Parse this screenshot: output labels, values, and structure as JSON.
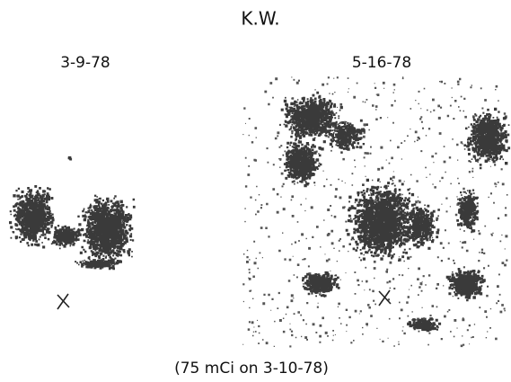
{
  "title": "K.W.",
  "panels": [
    {
      "label": "3-9-78"
    },
    {
      "label": "5-16-78"
    }
  ],
  "caption": "(75 mCi on 3-10-78)"
}
